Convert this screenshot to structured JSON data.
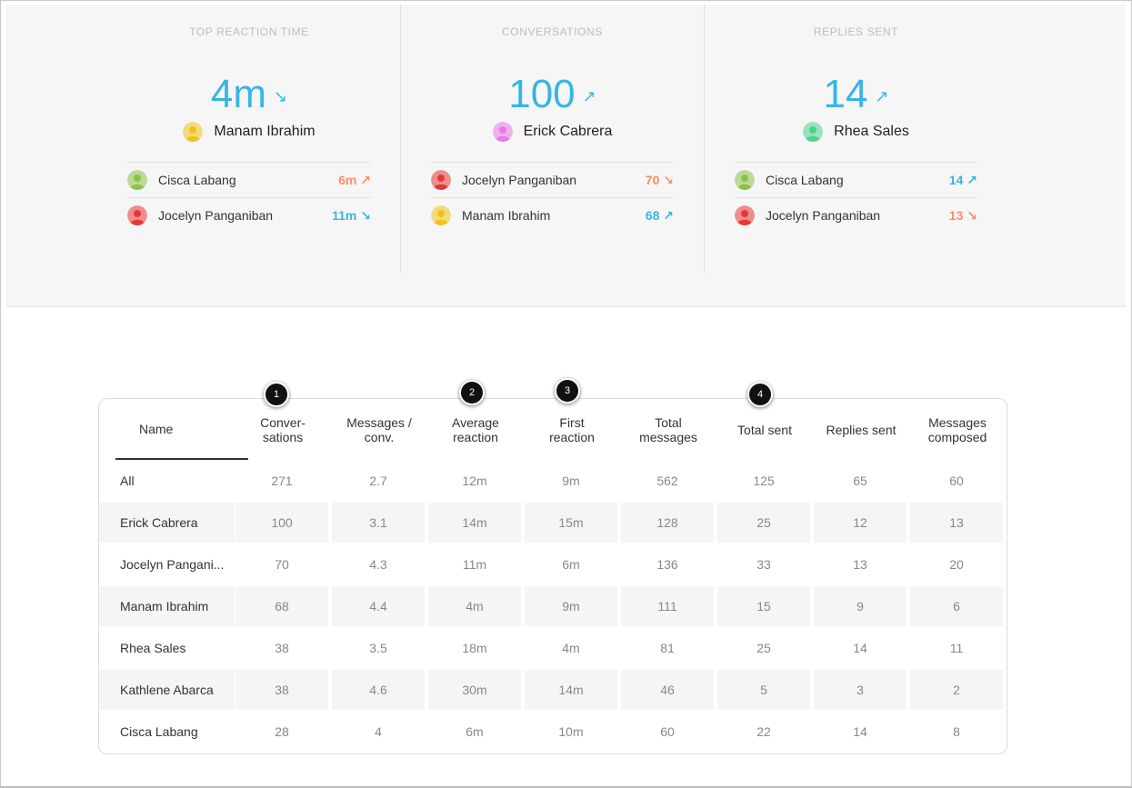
{
  "colors": {
    "accent_blue": "#37b5e5",
    "accent_orange": "#ff8a65",
    "panel_bg": "#f6f6f6"
  },
  "stats": [
    {
      "title": "TOP REACTION TIME",
      "value": "4m",
      "trend_icon": "arrow-down-right-icon",
      "leader": {
        "name": "Manam Ibrahim",
        "avatar_color": "#f2c21b"
      },
      "rows": [
        {
          "name": "Cisca Labang",
          "avatar_color": "#8bc34a",
          "value": "6m",
          "trend": "up",
          "color": "#ff8a65"
        },
        {
          "name": "Jocelyn Panganiban",
          "avatar_color": "#e53935",
          "value": "11m",
          "trend": "down",
          "color": "#37b5e5"
        }
      ]
    },
    {
      "title": "CONVERSATIONS",
      "value": "100",
      "trend_icon": "arrow-up-right-icon",
      "leader": {
        "name": "Erick Cabrera",
        "avatar_color": "#e879e8"
      },
      "rows": [
        {
          "name": "Jocelyn Panganiban",
          "avatar_color": "#e53935",
          "value": "70",
          "trend": "down",
          "color": "#ff8a65"
        },
        {
          "name": "Manam Ibrahim",
          "avatar_color": "#f2c21b",
          "value": "68",
          "trend": "up",
          "color": "#37b5e5"
        }
      ]
    },
    {
      "title": "REPLIES SENT",
      "value": "14",
      "trend_icon": "arrow-up-right-icon",
      "leader": {
        "name": "Rhea Sales",
        "avatar_color": "#4cd38a"
      },
      "rows": [
        {
          "name": "Cisca Labang",
          "avatar_color": "#8bc34a",
          "value": "14",
          "trend": "up",
          "color": "#37b5e5"
        },
        {
          "name": "Jocelyn Panganiban",
          "avatar_color": "#e53935",
          "value": "13",
          "trend": "down",
          "color": "#ff8a65"
        }
      ]
    }
  ],
  "table": {
    "headers": [
      "Name",
      "Conver-\nsations",
      "Messages /\nconv.",
      "Average\nreaction",
      "First\nreaction",
      "Total\nmessages",
      "Total sent",
      "Replies sent",
      "Messages\ncomposed"
    ],
    "rows": [
      [
        "All",
        "271",
        "2.7",
        "12m",
        "9m",
        "562",
        "125",
        "65",
        "60"
      ],
      [
        "Erick Cabrera",
        "100",
        "3.1",
        "14m",
        "15m",
        "128",
        "25",
        "12",
        "13"
      ],
      [
        "Jocelyn Pangani...",
        "70",
        "4.3",
        "11m",
        "6m",
        "136",
        "33",
        "13",
        "20"
      ],
      [
        "Manam Ibrahim",
        "68",
        "4.4",
        "4m",
        "9m",
        "111",
        "15",
        "9",
        "6"
      ],
      [
        "Rhea Sales",
        "38",
        "3.5",
        "18m",
        "4m",
        "81",
        "25",
        "14",
        "11"
      ],
      [
        "Kathlene Abarca",
        "38",
        "4.6",
        "30m",
        "14m",
        "46",
        "5",
        "3",
        "2"
      ],
      [
        "Cisca Labang",
        "28",
        "4",
        "6m",
        "10m",
        "60",
        "22",
        "14",
        "8"
      ]
    ]
  },
  "badges": [
    "1",
    "2",
    "3",
    "4"
  ]
}
